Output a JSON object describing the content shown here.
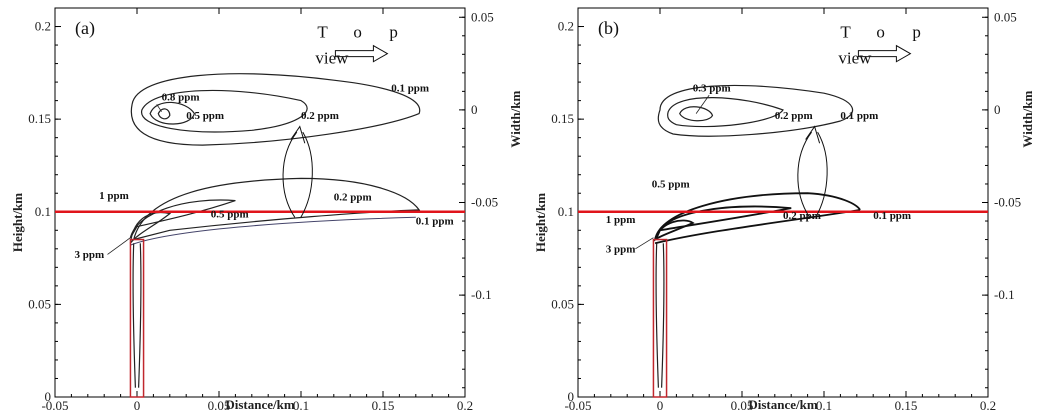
{
  "chart_data": [
    {
      "type": "contour",
      "panel": "(a)",
      "xlabel": "Distance/km",
      "ylabel": "Height/km",
      "y2label": "Width/km",
      "xlim": [
        -0.05,
        0.2
      ],
      "ylim": [
        0,
        0.21
      ],
      "y2lim": [
        -0.155,
        0.055
      ],
      "xticks": [
        "-0.05",
        "0",
        "0.05",
        "0.1",
        "0.15",
        "0.2"
      ],
      "yticks": [
        "0",
        "0.05",
        "0.1",
        "0.15",
        "0.2"
      ],
      "y2ticks": [
        "-0.1",
        "-0.05",
        "0",
        "0.05"
      ],
      "reference_line_height": 0.1,
      "top_view_text": [
        "T",
        "o",
        "p",
        "view"
      ],
      "top_view_contours": [
        {
          "label": "0.8 ppm",
          "x": 0.015,
          "y": 0.16
        },
        {
          "label": "0.5 ppm",
          "x": 0.03,
          "y": 0.15
        },
        {
          "label": "0.2 ppm",
          "x": 0.1,
          "y": 0.15
        },
        {
          "label": "0.1 ppm",
          "x": 0.155,
          "y": 0.165
        }
      ],
      "side_view_contours": [
        {
          "label": "1 ppm",
          "x": -0.005,
          "y": 0.107
        },
        {
          "label": "0.2 ppm",
          "x": 0.12,
          "y": 0.106
        },
        {
          "label": "0.5 ppm",
          "x": 0.045,
          "y": 0.097
        },
        {
          "label": "0.1 ppm",
          "x": 0.17,
          "y": 0.093
        },
        {
          "label": "3 ppm",
          "x": -0.02,
          "y": 0.075
        }
      ]
    },
    {
      "type": "contour",
      "panel": "(b)",
      "xlabel": "Distance/km",
      "ylabel": "Height/km",
      "y2label": "Width/km",
      "xlim": [
        -0.05,
        0.2
      ],
      "ylim": [
        0,
        0.21
      ],
      "y2lim": [
        -0.155,
        0.055
      ],
      "xticks": [
        "-0.05",
        "0",
        "0.05",
        "0.1",
        "0.15",
        "0.2"
      ],
      "yticks": [
        "0",
        "0.05",
        "0.1",
        "0.15",
        "0.2"
      ],
      "y2ticks": [
        "-0.1",
        "-0.05",
        "0",
        "0.05"
      ],
      "reference_line_height": 0.1,
      "top_view_text": [
        "T",
        "o",
        "p",
        "view"
      ],
      "top_view_contours": [
        {
          "label": "0.3 ppm",
          "x": 0.02,
          "y": 0.165
        },
        {
          "label": "0.2 ppm",
          "x": 0.07,
          "y": 0.15
        },
        {
          "label": "0.1 ppm",
          "x": 0.11,
          "y": 0.15
        }
      ],
      "side_view_contours": [
        {
          "label": "0.5 ppm",
          "x": -0.005,
          "y": 0.113
        },
        {
          "label": "1 ppm",
          "x": -0.015,
          "y": 0.094
        },
        {
          "label": "0.2 ppm",
          "x": 0.075,
          "y": 0.096
        },
        {
          "label": "0.1 ppm",
          "x": 0.13,
          "y": 0.096
        },
        {
          "label": "3 ppm",
          "x": -0.015,
          "y": 0.078
        }
      ]
    }
  ],
  "colors": {
    "reference_line": "#e0141b",
    "stack_outline": "#c0272d",
    "contour": "#222222",
    "contour_blue": "#44446a"
  }
}
